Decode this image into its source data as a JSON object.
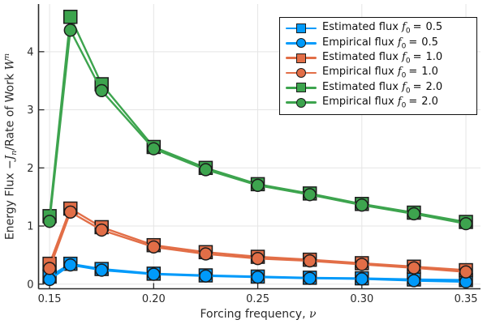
{
  "chart_data": {
    "type": "line",
    "title": "",
    "xlabel": "Forcing frequency, ν",
    "ylabel": "Energy Flux −Jₙ/Rate of Work 𝒲ⁿ",
    "xlabel_parts": {
      "pre": "Forcing frequency, ",
      "sym": "ν"
    },
    "ylabel_parts": {
      "pre": "Energy Flux −",
      "sym1": "J",
      "sub1": "n",
      "mid": "/Rate of Work ",
      "sym2": "W",
      "sup2": "n"
    },
    "x": [
      0.15,
      0.16,
      0.175,
      0.2,
      0.225,
      0.25,
      0.275,
      0.3,
      0.325,
      0.35
    ],
    "series": [
      {
        "name": "Estimated flux f₀ = 0.5",
        "label_prefix": "Estimated flux",
        "f_symbol": "f",
        "f_subscript": "0",
        "equals": "=",
        "f0": "0.5",
        "marker": "square",
        "color": "#009AFA",
        "values": [
          0.13,
          0.35,
          0.26,
          0.18,
          0.15,
          0.13,
          0.11,
          0.1,
          0.08,
          0.07
        ]
      },
      {
        "name": "Empirical flux f₀ = 0.5",
        "label_prefix": "Empirical flux",
        "f_symbol": "f",
        "f_subscript": "0",
        "equals": "=",
        "f0": "0.5",
        "marker": "circle",
        "color": "#009AFA",
        "values": [
          0.08,
          0.33,
          0.24,
          0.17,
          0.14,
          0.12,
          0.1,
          0.09,
          0.06,
          0.04
        ]
      },
      {
        "name": "Estimated flux f₀ = 1.0",
        "label_prefix": "Estimated flux",
        "f_symbol": "f",
        "f_subscript": "0",
        "equals": "=",
        "f0": "1.0",
        "marker": "square",
        "color": "#E26E47",
        "values": [
          0.35,
          1.3,
          0.98,
          0.67,
          0.55,
          0.47,
          0.42,
          0.36,
          0.3,
          0.24
        ]
      },
      {
        "name": "Empirical flux f₀ = 1.0",
        "label_prefix": "Empirical flux",
        "f_symbol": "f",
        "f_subscript": "0",
        "equals": "=",
        "f0": "1.0",
        "marker": "circle",
        "color": "#E26E47",
        "values": [
          0.27,
          1.24,
          0.93,
          0.64,
          0.52,
          0.44,
          0.4,
          0.34,
          0.28,
          0.21
        ]
      },
      {
        "name": "Estimated flux f₀ = 2.0",
        "label_prefix": "Estimated flux",
        "f_symbol": "f",
        "f_subscript": "0",
        "equals": "=",
        "f0": "2.0",
        "marker": "square",
        "color": "#3DA44E",
        "values": [
          1.17,
          4.6,
          3.44,
          2.36,
          2.0,
          1.72,
          1.56,
          1.38,
          1.23,
          1.07
        ]
      },
      {
        "name": "Empirical flux f₀ = 2.0",
        "label_prefix": "Empirical flux",
        "f_symbol": "f",
        "f_subscript": "0",
        "equals": "=",
        "f0": "2.0",
        "marker": "circle",
        "color": "#3DA44E",
        "values": [
          1.08,
          4.37,
          3.33,
          2.33,
          1.97,
          1.7,
          1.54,
          1.36,
          1.21,
          1.04
        ]
      }
    ],
    "xtick_values": [
      0.15,
      0.2,
      0.25,
      0.3,
      0.35
    ],
    "xtick_labels": [
      "0.15",
      "0.20",
      "0.25",
      "0.30",
      "0.35"
    ],
    "ytick_values": [
      0,
      1,
      2,
      3,
      4
    ],
    "ytick_labels": [
      "0",
      "1",
      "2",
      "3",
      "4"
    ],
    "xlim": [
      0.1447,
      0.357
    ],
    "ylim": [
      -0.08,
      4.82
    ],
    "grid": true,
    "legend_position": "top-right",
    "colors": {
      "background": "#FFFFFF",
      "grid": "#E5E5E5",
      "axis": "#2A2A2A",
      "tick_text": "#2B2B2B",
      "marker_stroke": "#1C1C1C",
      "legend_border": "#111111"
    }
  }
}
